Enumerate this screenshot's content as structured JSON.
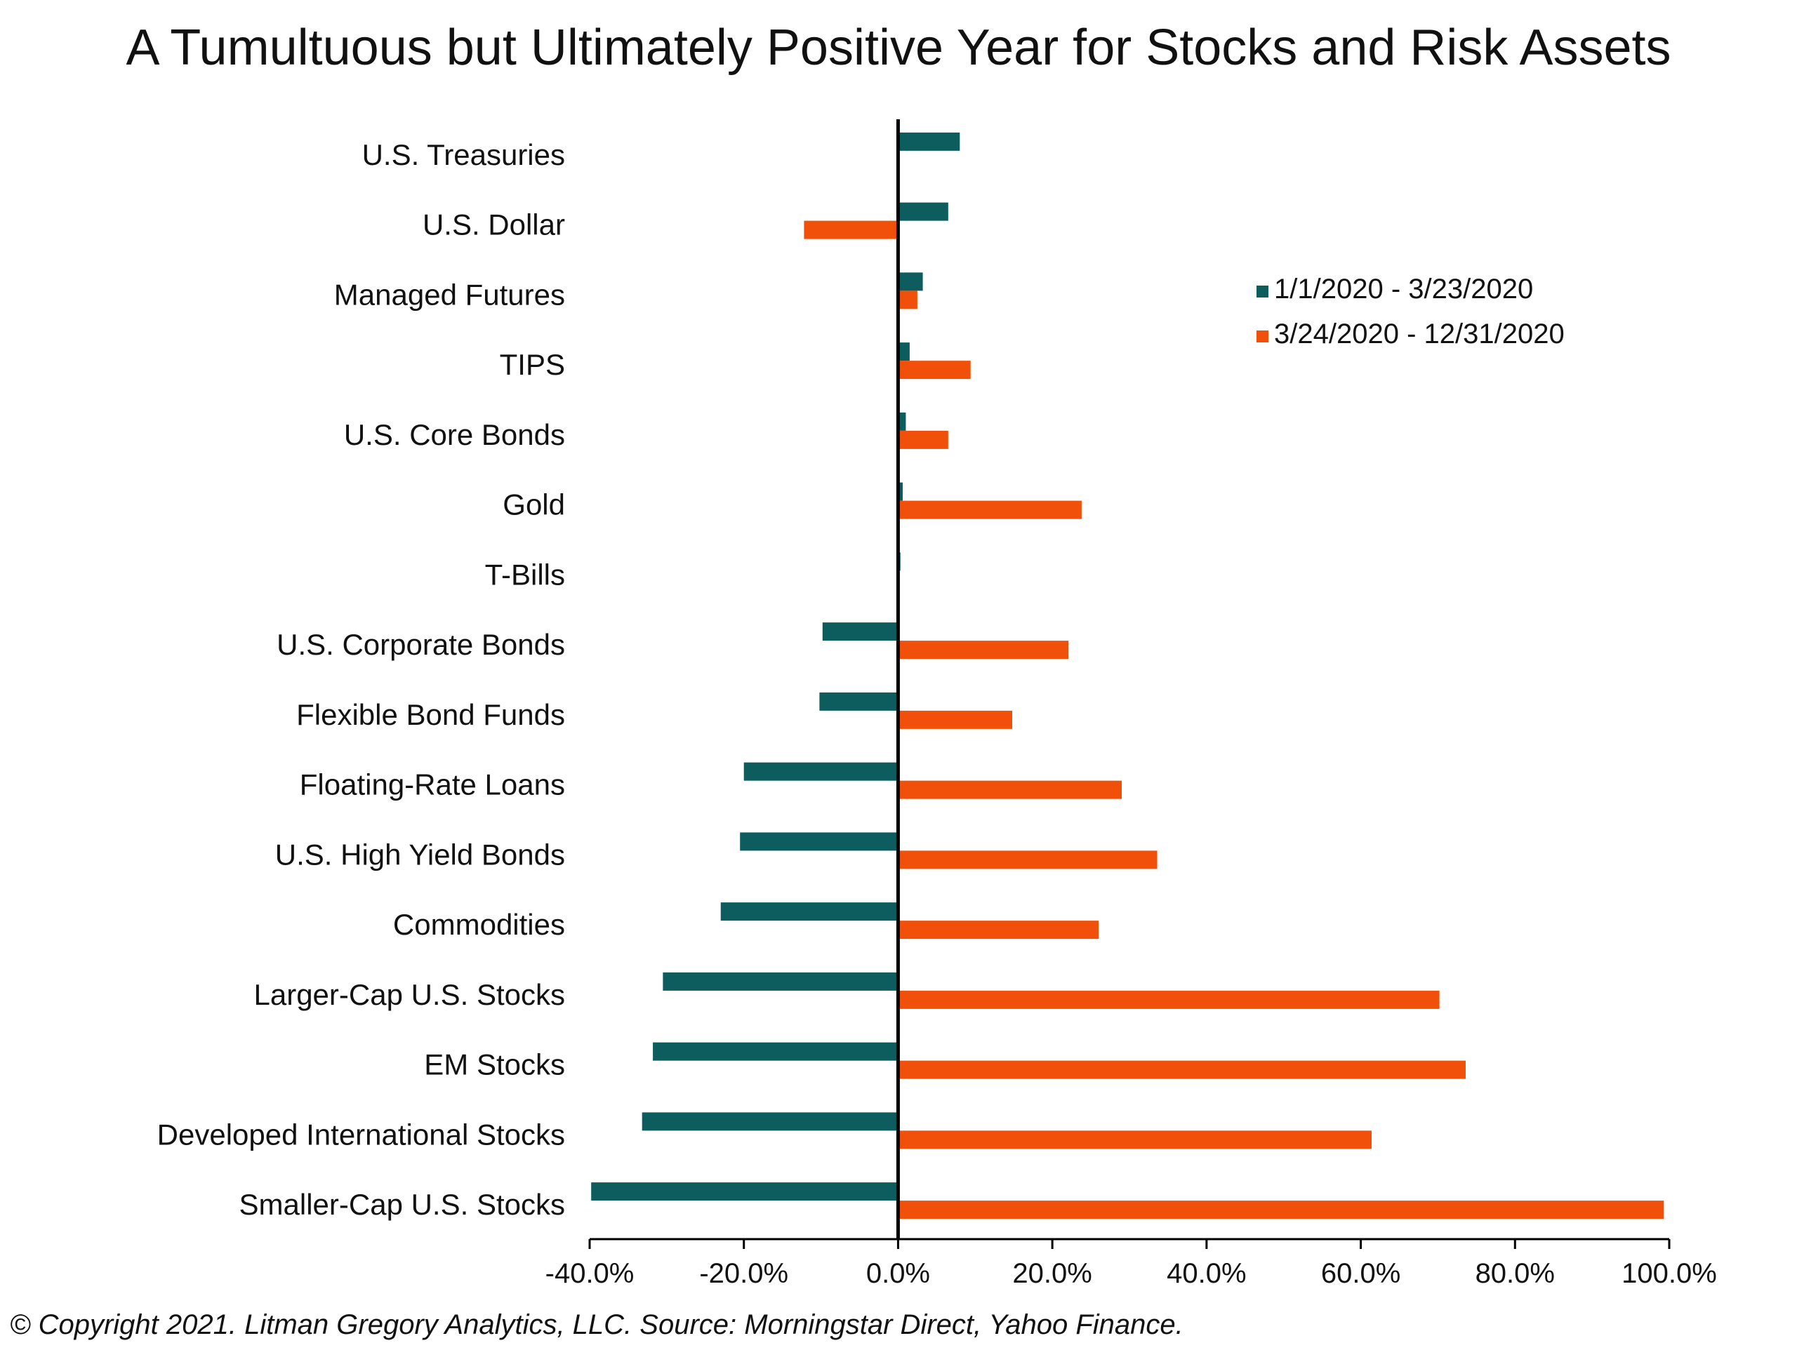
{
  "chart_data": {
    "type": "bar",
    "orientation": "horizontal",
    "title": "A Tumultuous but Ultimately Positive Year for Stocks and Risk Assets",
    "categories": [
      "U.S. Treasuries",
      "U.S. Dollar",
      "Managed Futures",
      "TIPS",
      "U.S. Core Bonds",
      "Gold",
      "T-Bills",
      "U.S. Corporate Bonds",
      "Flexible Bond Funds",
      "Floating-Rate Loans",
      "U.S. High Yield Bonds",
      "Commodities",
      "Larger-Cap U.S. Stocks",
      "EM Stocks",
      "Developed International Stocks",
      "Smaller-Cap U.S. Stocks"
    ],
    "series": [
      {
        "name": "1/1/2020 - 3/23/2020",
        "color": "#0d5c5e",
        "values": [
          8.0,
          6.5,
          3.2,
          1.5,
          1.0,
          0.6,
          0.3,
          -9.8,
          -10.2,
          -20.0,
          -20.5,
          -23.0,
          -30.5,
          -31.8,
          -33.2,
          -39.8
        ]
      },
      {
        "name": "3/24/2020 - 12/31/2020",
        "color": "#f0500a",
        "values": [
          0.0,
          -12.2,
          2.5,
          9.4,
          6.5,
          23.8,
          0.0,
          22.1,
          14.8,
          29.0,
          33.6,
          26.0,
          70.2,
          73.6,
          61.4,
          99.3
        ]
      }
    ],
    "xlim": [
      -40,
      100
    ],
    "xticks": [
      -40,
      -20,
      0,
      20,
      40,
      60,
      80,
      100
    ],
    "xtick_labels": [
      "-40.0%",
      "-20.0%",
      "0.0%",
      "20.0%",
      "40.0%",
      "60.0%",
      "80.0%",
      "100.0%"
    ],
    "xlabel": "",
    "ylabel": "",
    "grid": false,
    "legend_position": "top-right"
  },
  "footer": {
    "copyright": "© Copyright 2021. Litman Gregory Analytics, LLC. Source: Morningstar Direct, Yahoo Finance."
  }
}
